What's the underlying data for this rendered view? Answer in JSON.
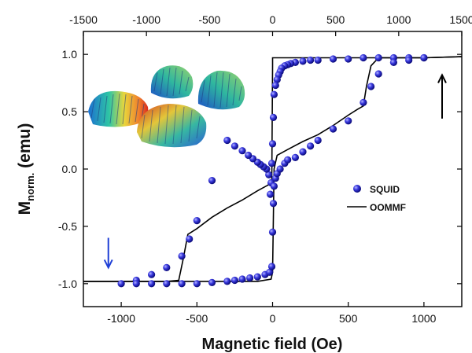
{
  "chart_data": {
    "type": "scatter",
    "xlabel": "Magnetic field (Oe)",
    "ylabel_main": "M",
    "ylabel_sub": "norm.",
    "ylabel_unit": " (emu)",
    "xlim": [
      -1250,
      1250
    ],
    "ylim": [
      -1.2,
      1.2
    ],
    "x_ticks_bottom": [
      -1000,
      -500,
      0,
      500,
      1000
    ],
    "x_ticks_bottom_labels": [
      "-1000",
      "-500",
      "0",
      "500",
      "1000"
    ],
    "x_ticks_top": [
      -1500,
      -1000,
      -500,
      0,
      500,
      1000,
      1500
    ],
    "x_ticks_top_labels": [
      "-1500",
      "-1000",
      "-500",
      "0",
      "500",
      "1000",
      "1500"
    ],
    "top_axis_scale": 1.2,
    "y_ticks": [
      -1.0,
      -0.5,
      0.0,
      0.5,
      1.0
    ],
    "y_ticks_labels": [
      "-1.0",
      "-0.5",
      "0.0",
      "0.5",
      "1.0"
    ],
    "grid": false,
    "legend_position": "center-right",
    "series": [
      {
        "name": "SQUID",
        "kind": "markers",
        "color": "#2323d6",
        "x": [
          1000,
          900,
          800,
          700,
          600,
          500,
          400,
          300,
          250,
          200,
          150,
          120,
          100,
          80,
          60,
          50,
          40,
          30,
          20,
          10,
          5,
          0,
          -5,
          -10,
          -15,
          -25,
          -40,
          -60,
          -80,
          -100,
          -130,
          -160,
          -200,
          -250,
          -300,
          -400,
          -500,
          -550,
          -600,
          -700,
          -800,
          -900,
          -1000,
          -900,
          -800,
          -700,
          -600,
          -500,
          -400,
          -300,
          -250,
          -200,
          -150,
          -100,
          -50,
          -20,
          -5,
          0,
          5,
          10,
          20,
          30,
          50,
          80,
          100,
          150,
          200,
          250,
          300,
          400,
          500,
          600,
          650,
          700,
          800,
          900,
          1000
        ],
        "y": [
          0.97,
          0.97,
          0.97,
          0.97,
          0.97,
          0.96,
          0.96,
          0.95,
          0.95,
          0.94,
          0.93,
          0.92,
          0.91,
          0.9,
          0.88,
          0.85,
          0.82,
          0.78,
          0.73,
          0.65,
          0.45,
          0.22,
          0.05,
          -0.12,
          -0.22,
          -0.05,
          0.0,
          0.02,
          0.04,
          0.06,
          0.09,
          0.12,
          0.16,
          0.2,
          0.25,
          -0.1,
          -0.45,
          -0.61,
          -0.76,
          -0.86,
          -0.92,
          -0.97,
          -1.0,
          -1.0,
          -1.0,
          -1.0,
          -1.0,
          -1.0,
          -0.99,
          -0.98,
          -0.97,
          -0.96,
          -0.95,
          -0.94,
          -0.92,
          -0.9,
          -0.85,
          -0.55,
          -0.3,
          -0.15,
          -0.08,
          -0.04,
          0.0,
          0.05,
          0.08,
          0.1,
          0.15,
          0.2,
          0.25,
          0.35,
          0.42,
          0.58,
          0.72,
          0.83,
          0.93,
          0.95,
          0.97
        ]
      },
      {
        "name": "OOMMF",
        "kind": "line",
        "color": "#000000",
        "x": [
          -1250,
          -700,
          -620,
          -590,
          -560,
          -500,
          -400,
          -300,
          -200,
          -100,
          -30,
          -5,
          0,
          0,
          5,
          20,
          100,
          300,
          500,
          600,
          630,
          700,
          800,
          1000,
          1250
        ],
        "y": [
          -0.98,
          -0.98,
          -0.97,
          -0.78,
          -0.57,
          -0.52,
          -0.42,
          -0.34,
          -0.27,
          -0.19,
          -0.14,
          -0.1,
          0.9,
          0.97,
          0.97,
          0.97,
          0.97,
          0.97,
          0.97,
          0.97,
          0.97,
          0.97,
          0.97,
          0.97,
          0.98
        ]
      },
      {
        "name": "OOMMF-lower",
        "kind": "line",
        "color": "#000000",
        "x": [
          -1250,
          -700,
          -100,
          -10,
          0,
          10,
          30,
          100,
          200,
          300,
          400,
          500,
          560,
          600,
          620,
          650,
          700,
          800,
          1000,
          1250
        ],
        "y": [
          -0.98,
          -0.98,
          -0.98,
          -0.96,
          -0.9,
          0.0,
          0.12,
          0.17,
          0.24,
          0.3,
          0.38,
          0.47,
          0.52,
          0.55,
          0.72,
          0.9,
          0.97,
          0.97,
          0.97,
          0.98
        ]
      }
    ],
    "arrows": [
      {
        "direction": "down",
        "color": "#1f3fd6",
        "x": -1085,
        "y_from": -0.6,
        "y_to": -0.86
      },
      {
        "direction": "up",
        "color": "#000000",
        "x": 1120,
        "y_from": 0.44,
        "y_to": 0.82
      }
    ]
  }
}
